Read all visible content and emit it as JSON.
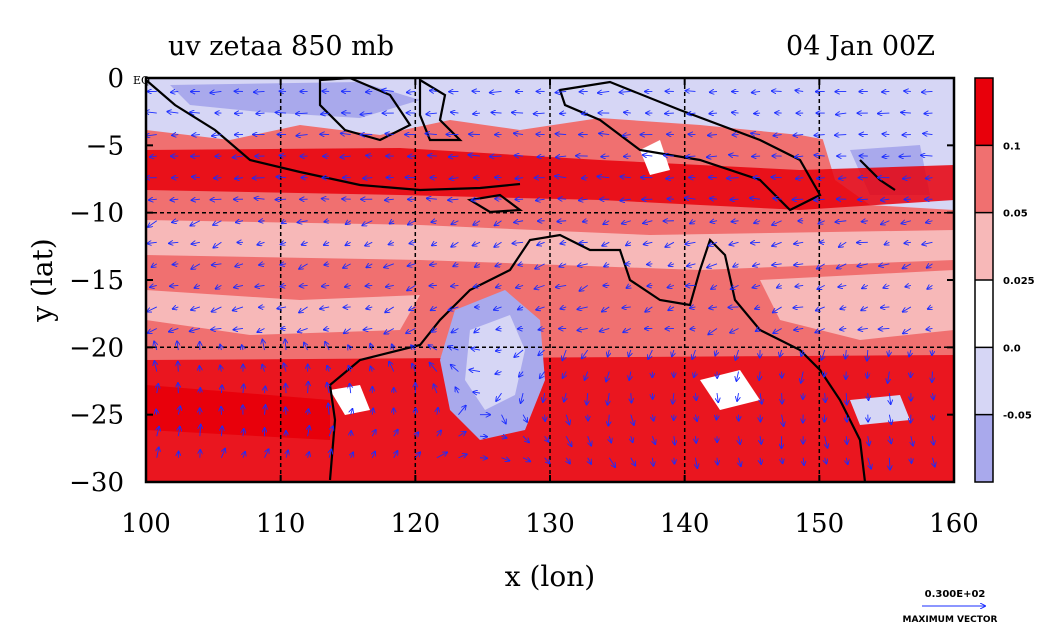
{
  "title_left": "uv zetaa 850 mb",
  "title_right": "04 Jan 00Z",
  "axes": {
    "xlabel": "x (lon)",
    "ylabel": "y (lat)",
    "x_ticks": [
      "100",
      "110",
      "120",
      "130",
      "140",
      "150",
      "160"
    ],
    "y_ticks": [
      "0",
      "−5",
      "−10",
      "−15",
      "−20",
      "−25",
      "−30"
    ],
    "x_range": [
      100,
      160
    ],
    "y_range": [
      -30,
      0
    ],
    "eq_label": "EQ"
  },
  "colorbar": {
    "labels": [
      "0.1",
      "0.05",
      "0.025",
      "0.0",
      "-0.05"
    ],
    "colors": [
      "#e8000b",
      "#f07070",
      "#f7b8b8",
      "#ffffff",
      "#d6d6f5",
      "#a9a9ec"
    ]
  },
  "max_vector": {
    "value": "0.300E+02",
    "label": "MAXIMUM VECTOR"
  },
  "vector_color": "#1a2cff",
  "coast_color": "#000000"
}
